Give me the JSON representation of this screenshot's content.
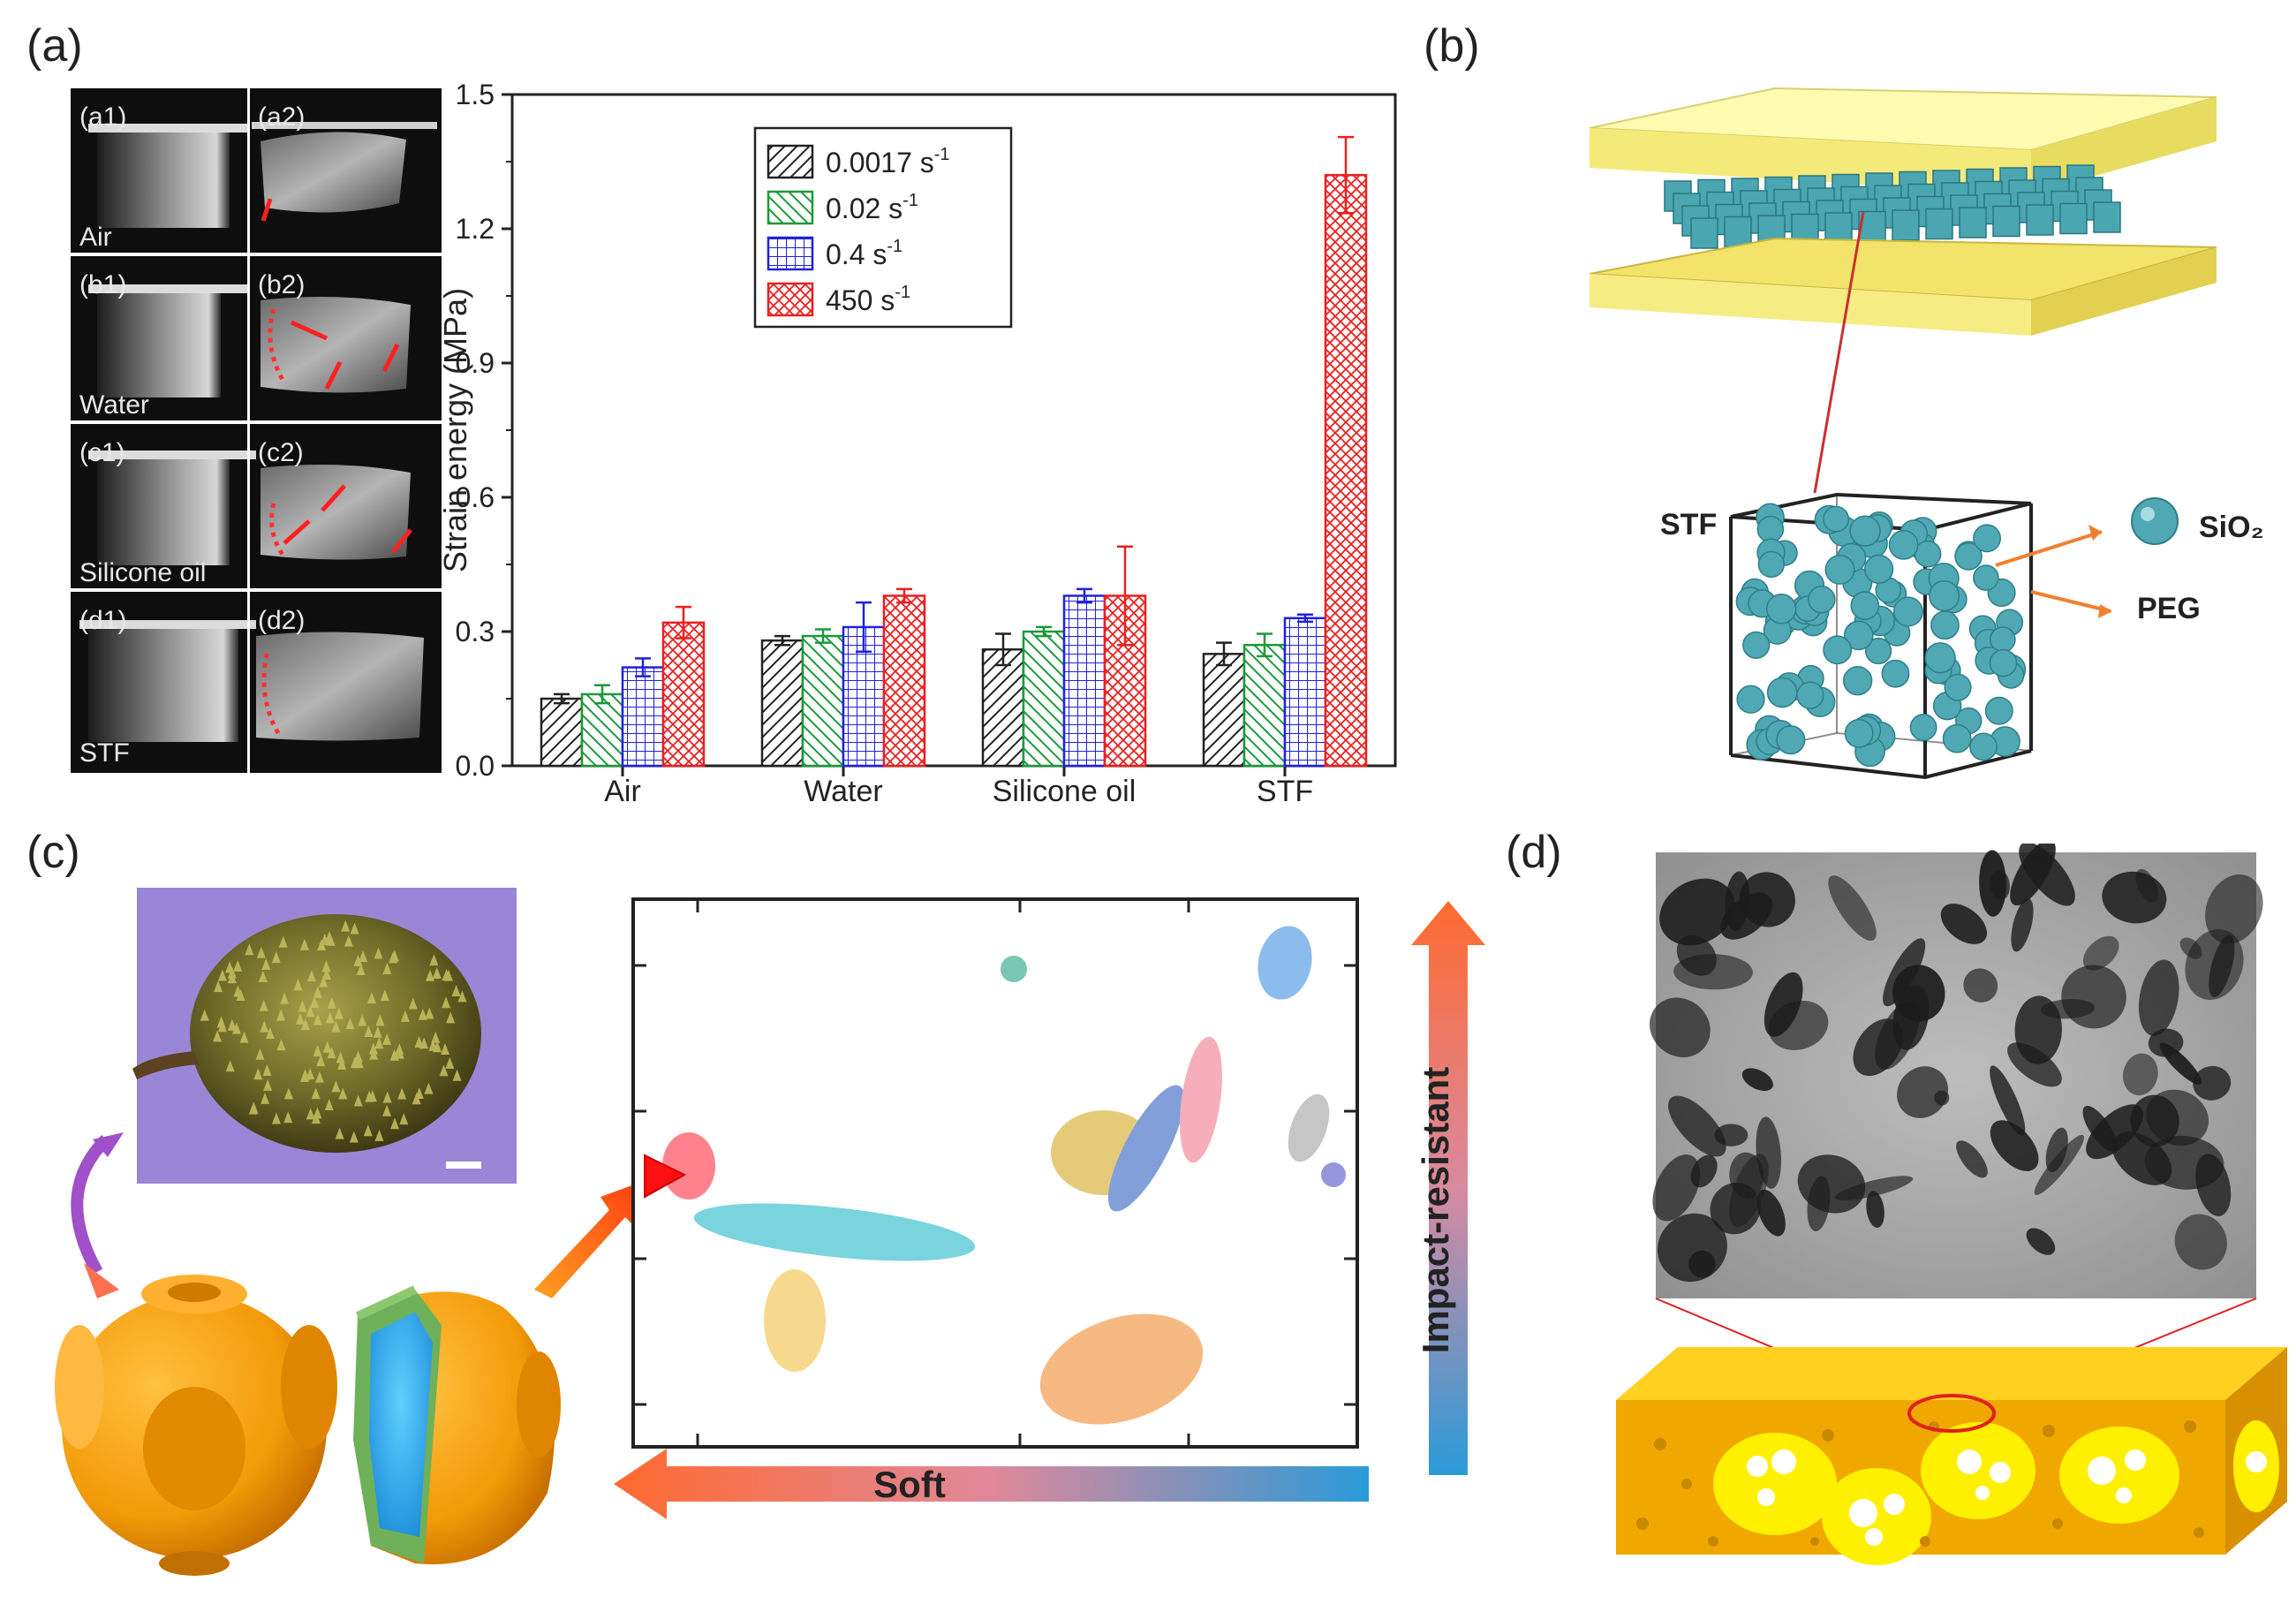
{
  "panels": {
    "a": {
      "label": "(a)"
    },
    "b": {
      "label": "(b)"
    },
    "c": {
      "label": "(c)"
    },
    "d": {
      "label": "(d)"
    }
  },
  "photos": [
    {
      "left": "(a1)",
      "right": "(a2)",
      "caption": "Air"
    },
    {
      "left": "(b1)",
      "right": "(b2)",
      "caption": "Water"
    },
    {
      "left": "(c1)",
      "right": "(c2)",
      "caption": "Silicone oil"
    },
    {
      "left": "(d1)",
      "right": "(d2)",
      "caption": "STF"
    }
  ],
  "chart_data": {
    "type": "bar",
    "ylabel": "Strain energy (MPa)",
    "xlabel": "",
    "ylim": [
      0.0,
      1.5
    ],
    "yticks": [
      "0.0",
      "0.3",
      "0.6",
      "0.9",
      "1.2",
      "1.5"
    ],
    "categories": [
      "Air",
      "Water",
      "Silicone oil",
      "STF"
    ],
    "series": [
      {
        "name": "0.0017 s",
        "sup": "-1",
        "color": "#222222",
        "pattern": "diag-left",
        "values": [
          0.15,
          0.28,
          0.26,
          0.25
        ],
        "errors": [
          0.01,
          0.01,
          0.035,
          0.025
        ]
      },
      {
        "name": "0.02 s",
        "sup": "-1",
        "color": "#1a9a3a",
        "pattern": "diag-right",
        "values": [
          0.16,
          0.29,
          0.3,
          0.27
        ],
        "errors": [
          0.02,
          0.015,
          0.01,
          0.025
        ]
      },
      {
        "name": "0.4 s",
        "sup": "-1",
        "color": "#2020e0",
        "pattern": "grid",
        "values": [
          0.22,
          0.31,
          0.38,
          0.33
        ],
        "errors": [
          0.02,
          0.055,
          0.015,
          0.008
        ]
      },
      {
        "name": "450 s",
        "sup": "-1",
        "color": "#e82020",
        "pattern": "cross",
        "values": [
          0.32,
          0.38,
          0.38,
          1.32
        ],
        "errors": [
          0.035,
          0.015,
          0.11,
          0.085
        ]
      }
    ]
  },
  "panel_b": {
    "stf": "STF",
    "sio2": "SiO₂",
    "peg": "PEG"
  },
  "panel_c": {
    "soft": "Soft",
    "impact": "Impact-resistant"
  }
}
